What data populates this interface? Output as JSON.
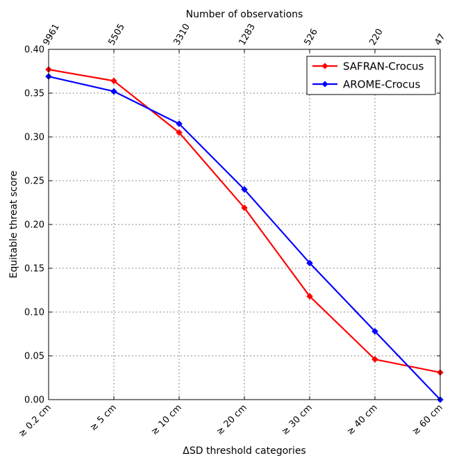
{
  "chart_data": {
    "type": "line",
    "top_axis_title": "Number of observations",
    "top_tick_labels": [
      "9961",
      "5505",
      "3310",
      "1283",
      "526",
      "220",
      "47"
    ],
    "categories": [
      "≳ 0.2 cm",
      "≳ 5 cm",
      "≳ 10 cm",
      "≳ 20 cm",
      "≳ 30 cm",
      "≳ 40 cm",
      "≳ 60 cm"
    ],
    "xlabel": "ΔSD threshold categories",
    "ylabel": "Equitable  threat score",
    "ylim": [
      0,
      0.4
    ],
    "yticks": [
      "0.00",
      "0.05",
      "0.10",
      "0.15",
      "0.20",
      "0.25",
      "0.30",
      "0.35",
      "0.40"
    ],
    "grid": true,
    "legend_position": "top-right",
    "series": [
      {
        "name": "SAFRAN-Crocus",
        "color": "#ff0000",
        "marker": "diamond",
        "values": [
          0.377,
          0.364,
          0.305,
          0.219,
          0.118,
          0.046,
          0.031
        ]
      },
      {
        "name": "AROME-Crocus",
        "color": "#0000ff",
        "marker": "diamond",
        "values": [
          0.369,
          0.352,
          0.315,
          0.24,
          0.156,
          0.078,
          0.0
        ]
      }
    ]
  }
}
